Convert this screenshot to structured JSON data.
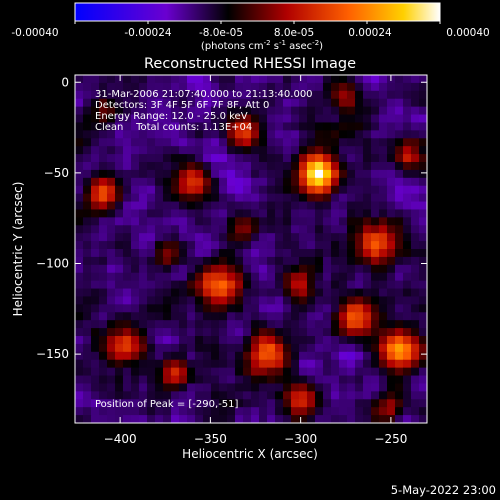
{
  "colorbar": {
    "tick_labels": [
      "-0.00040",
      "-0.00024",
      "-8.0e-05",
      "8.0e-05",
      "0.00024",
      "0.00040"
    ],
    "units_prefix": "(photons cm",
    "units_exp1": "-2",
    "units_mid1": " s",
    "units_exp2": "-1",
    "units_mid2": " asec",
    "units_exp3": "-2",
    "units_suffix": ")",
    "colors": [
      "#0000ff",
      "#6a00d0",
      "#000000",
      "#b00000",
      "#ff6000",
      "#ffd000",
      "#ffffff"
    ]
  },
  "chart_data": {
    "type": "heatmap",
    "title": "Reconstructed RHESSI Image",
    "xlabel": "Heliocentric X (arcsec)",
    "ylabel": "Heliocentric Y (arcsec)",
    "xlim": [
      -425,
      -230
    ],
    "ylim": [
      -188,
      4
    ],
    "x_ticks": [
      -400,
      -350,
      -300,
      -250
    ],
    "y_ticks": [
      0,
      -50,
      -100,
      -150
    ],
    "annotations": [
      "31-Mar-2006 21:07:40.000 to 21:13:40.000",
      "Detectors: 3F 4F 5F 6F 7F 8F, Att 0",
      "Energy Range: 12.0 - 25.0 keV",
      "Clean    Total counts: 1.13E+04"
    ],
    "peak_label": "Position of Peak = [-290,-51]",
    "peak": [
      -290,
      -51
    ],
    "grid_size": [
      44,
      44
    ],
    "seed": 7
  },
  "footer": {
    "date": "5-May-2022 23:00"
  }
}
